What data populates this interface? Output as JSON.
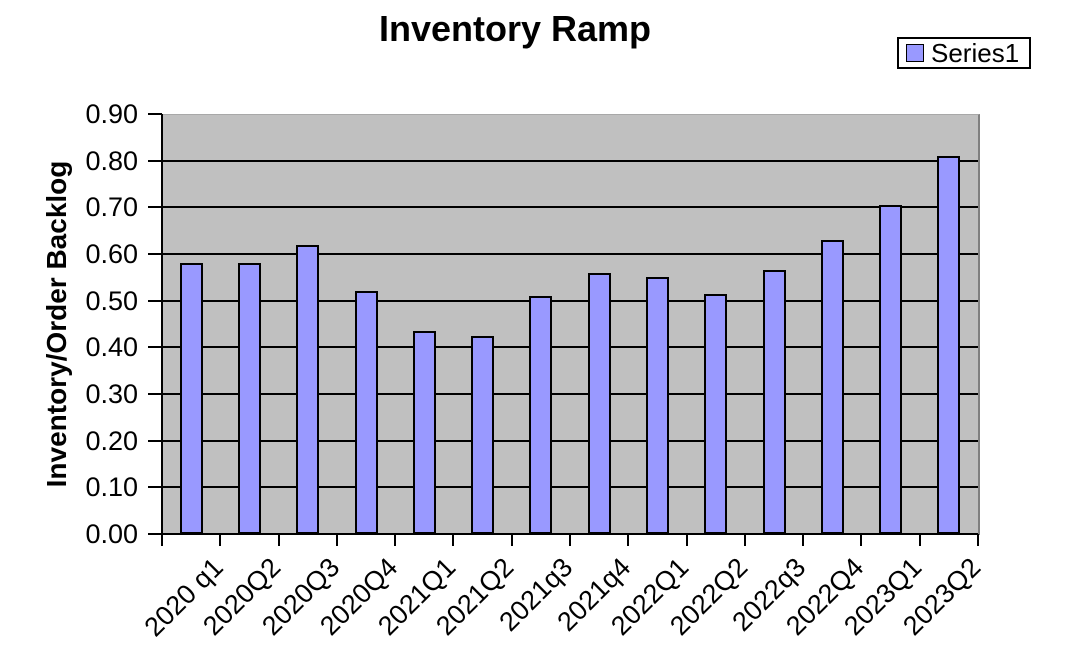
{
  "legend": {
    "series_label": "Series1"
  },
  "chart_data": {
    "type": "bar",
    "title": "Inventory Ramp",
    "xlabel": "",
    "ylabel": "Inventory/Order Backlog",
    "categories": [
      "2020 q1",
      "2020Q2",
      "2020Q3",
      "2020Q4",
      "2021Q1",
      "2021Q2",
      "2021q3",
      "2021q4",
      "2022Q1",
      "2022Q2",
      "2022q3",
      "2022Q4",
      "2023Q1",
      "2023Q2"
    ],
    "series": [
      {
        "name": "Series1",
        "values": [
          0.58,
          0.58,
          0.62,
          0.52,
          0.435,
          0.425,
          0.51,
          0.56,
          0.55,
          0.515,
          0.565,
          0.63,
          0.705,
          0.81
        ]
      }
    ],
    "ylim": [
      0.0,
      0.9
    ],
    "ytick_step": 0.1,
    "ytick_labels": [
      "0.00",
      "0.10",
      "0.20",
      "0.30",
      "0.40",
      "0.50",
      "0.60",
      "0.70",
      "0.80",
      "0.90"
    ],
    "grid": "horizontal-only",
    "legend_position": "top-right",
    "colors": {
      "bar_fill": "#9999ff",
      "bar_border": "#000000",
      "plot_background": "#c0c0c0",
      "gridline": "#000000",
      "axis": "#000000",
      "chart_background": "#ffffff",
      "text": "#000000"
    }
  }
}
